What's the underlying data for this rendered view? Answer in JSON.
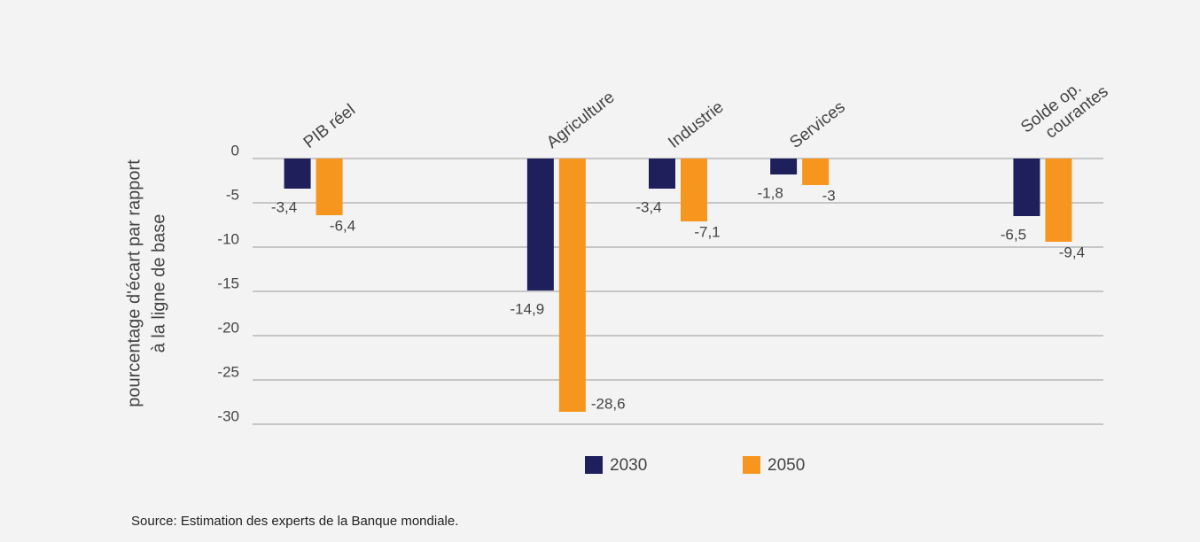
{
  "chart_data": {
    "type": "bar",
    "ylabel": [
      "pourcentage d'écart par rapport",
      "à la ligne de base"
    ],
    "categories": [
      "PIB réel",
      null,
      "Agriculture",
      "Industrie",
      "Services",
      null,
      "Solde op.\ncourantes"
    ],
    "series": [
      {
        "name": "2030",
        "color": "#1f1f5c",
        "values": [
          -3.4,
          null,
          -14.9,
          -3.4,
          -1.8,
          null,
          -6.5
        ],
        "value_labels": [
          "-3,4",
          null,
          "-14,9",
          "-3,4",
          "-1,8",
          null,
          "-6,5"
        ]
      },
      {
        "name": "2050",
        "color": "#f7961e",
        "values": [
          -6.4,
          null,
          -28.6,
          -7.1,
          -3,
          null,
          -9.4
        ],
        "value_labels": [
          "-6,4",
          null,
          "-28,6",
          "-7,1",
          "-3",
          null,
          "-9,4"
        ]
      }
    ],
    "ylim": [
      -30,
      0
    ],
    "yticks": [
      0,
      -5,
      -10,
      -15,
      -20,
      -25,
      -30
    ],
    "grid": true,
    "source": "Source: Estimation des experts de la Banque mondiale."
  }
}
